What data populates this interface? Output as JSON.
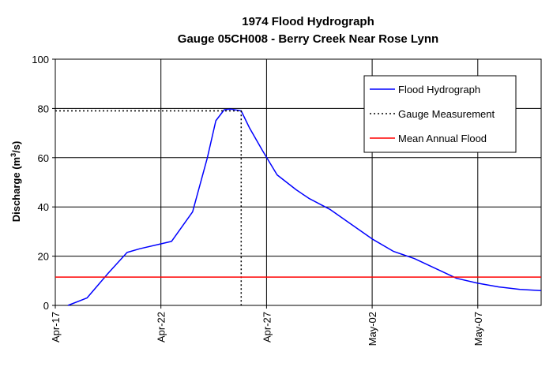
{
  "chart_data": {
    "type": "line",
    "title": "1974 Flood Hydrograph",
    "subtitle": "Gauge 05CH008 - Berry Creek Near Rose Lynn",
    "ylabel_main": "Discharge (m",
    "ylabel_sup": "3",
    "ylabel_end": "/s)",
    "ylim": [
      0,
      100
    ],
    "yticks": [
      0,
      20,
      40,
      60,
      80,
      100
    ],
    "xlim": [
      0,
      23
    ],
    "xtick_positions": [
      0,
      5,
      10,
      15,
      20
    ],
    "xtick_labels": [
      "Apr-17",
      "Apr-22",
      "Apr-27",
      "May-02",
      "May-07"
    ],
    "grid": true,
    "legend_position": "top-right",
    "colors": {
      "hydrograph": "#0000ff",
      "measurement": "#000000",
      "mean_flood": "#ff0000"
    },
    "series": [
      {
        "name": "Flood Hydrograph",
        "style": "solid",
        "x": [
          0.6,
          1.5,
          2.5,
          3.4,
          4.0,
          5.0,
          5.5,
          6.5,
          7.2,
          7.6,
          8.0,
          8.3,
          8.8,
          9.2,
          9.8,
          10.5,
          11.4,
          12.0,
          13.0,
          14.0,
          15.0,
          16.0,
          17.0,
          18.0,
          19.0,
          20.0,
          21.0,
          22.0,
          23.0
        ],
        "y": [
          0,
          3,
          13,
          21.5,
          23,
          25,
          26,
          38,
          60,
          75,
          79.5,
          79.7,
          79,
          72,
          63,
          53,
          47,
          43.5,
          39,
          33,
          27,
          22,
          19,
          15,
          11,
          9,
          7.5,
          6.5,
          6
        ]
      },
      {
        "name": "Gauge Measurement",
        "style": "dotted",
        "x": [
          0,
          8.8,
          8.8
        ],
        "y": [
          79,
          79,
          0
        ]
      },
      {
        "name": "Mean Annual Flood",
        "style": "solid",
        "x": [
          0,
          23
        ],
        "y": [
          11.5,
          11.5
        ]
      }
    ]
  }
}
